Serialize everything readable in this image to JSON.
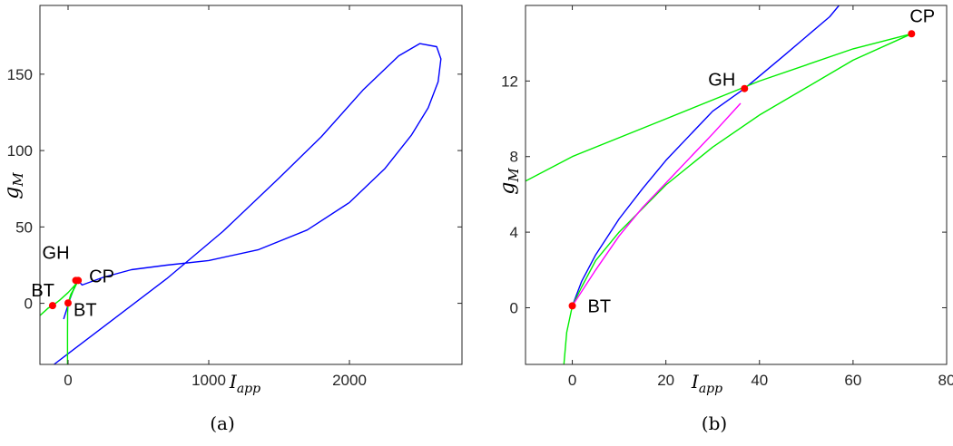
{
  "chart_data": [
    {
      "type": "line",
      "subcaption": "(a)",
      "xlabel": {
        "main": "I",
        "sub": "app"
      },
      "ylabel": {
        "main": "g",
        "sub": "M"
      },
      "xlim": [
        -200,
        2800
      ],
      "ylim": [
        -40,
        195
      ],
      "xticks": [
        {
          "v": 0,
          "t": "0"
        },
        {
          "v": 1000,
          "t": "1000"
        },
        {
          "v": 2000,
          "t": "2000"
        }
      ],
      "yticks": [
        {
          "v": 0,
          "t": "0"
        },
        {
          "v": 50,
          "t": "50"
        },
        {
          "v": 100,
          "t": "100"
        },
        {
          "v": 150,
          "t": "150"
        }
      ],
      "grid": false,
      "series": [
        {
          "color": "#0000ff",
          "points": [
            [
              -100,
              -40
            ],
            [
              0,
              -33
            ],
            [
              300,
              -12
            ],
            [
              700,
              16
            ],
            [
              1100,
              47
            ],
            [
              1500,
              82
            ],
            [
              1800,
              109
            ],
            [
              2100,
              140
            ],
            [
              2350,
              162
            ],
            [
              2500,
              170
            ],
            [
              2620,
              168
            ],
            [
              2650,
              160
            ],
            [
              2630,
              145
            ],
            [
              2560,
              128
            ],
            [
              2440,
              110
            ],
            [
              2250,
              88
            ],
            [
              2000,
              66
            ],
            [
              1700,
              48
            ],
            [
              1350,
              35
            ],
            [
              1000,
              28
            ],
            [
              700,
              25
            ],
            [
              450,
              22
            ],
            [
              250,
              17
            ],
            [
              100,
              12
            ],
            [
              70,
              15
            ],
            [
              50,
              12
            ],
            [
              10,
              2
            ],
            [
              -30,
              -10
            ]
          ]
        },
        {
          "color": "#00ee00",
          "points": [
            [
              -200,
              -8
            ],
            [
              -140,
              -3
            ],
            [
              -110,
              -1.5
            ],
            [
              -60,
              2
            ],
            [
              0,
              7
            ],
            [
              50,
              12
            ],
            [
              72,
              15
            ]
          ]
        },
        {
          "color": "#00ee00",
          "points": [
            [
              72,
              15
            ],
            [
              50,
              11
            ],
            [
              25,
              6
            ],
            [
              8,
              2
            ],
            [
              0,
              0
            ],
            [
              -3,
              -6
            ],
            [
              -4,
              -20
            ],
            [
              -4,
              -40
            ]
          ]
        },
        {
          "color": "#00ee00",
          "points": [
            [
              0,
              0
            ],
            [
              20,
              6
            ],
            [
              45,
              10
            ],
            [
              72,
              15
            ]
          ]
        }
      ],
      "points": [
        {
          "label": "GH",
          "x": 55,
          "y": 15,
          "color": "#ff0000"
        },
        {
          "label": "CP",
          "x": 72,
          "y": 15,
          "color": "#ff0000"
        },
        {
          "label": "BT",
          "x": -110,
          "y": -1.5,
          "color": "#ff0000"
        },
        {
          "label": "BT",
          "x": 0,
          "y": 0.2,
          "color": "#ff0000"
        }
      ]
    },
    {
      "type": "line",
      "subcaption": "(b)",
      "xlabel": {
        "main": "I",
        "sub": "app"
      },
      "ylabel": {
        "main": "g",
        "sub": "M"
      },
      "xlim": [
        -10,
        80
      ],
      "ylim": [
        -3,
        16
      ],
      "xticks": [
        {
          "v": 0,
          "t": "0"
        },
        {
          "v": 20,
          "t": "20"
        },
        {
          "v": 40,
          "t": "40"
        },
        {
          "v": 60,
          "t": "60"
        },
        {
          "v": 80,
          "t": "80"
        }
      ],
      "yticks": [
        {
          "v": 0,
          "t": "0"
        },
        {
          "v": 4,
          "t": "4"
        },
        {
          "v": 8,
          "t": "8"
        },
        {
          "v": 12,
          "t": "12"
        }
      ],
      "grid": false,
      "series": [
        {
          "color": "#0000ff",
          "points": [
            [
              0,
              0.1
            ],
            [
              2,
              1.4
            ],
            [
              5,
              2.8
            ],
            [
              10,
              4.7
            ],
            [
              15,
              6.3
            ],
            [
              20,
              7.8
            ],
            [
              25,
              9.1
            ],
            [
              30,
              10.4
            ],
            [
              36.8,
              11.6
            ],
            [
              45,
              13.3
            ],
            [
              55,
              15.4
            ],
            [
              57,
              16
            ]
          ]
        },
        {
          "color": "#00ee00",
          "points": [
            [
              -10,
              6.7
            ],
            [
              0,
              8.0
            ],
            [
              20,
              10.0
            ],
            [
              40,
              12.0
            ],
            [
              60,
              13.7
            ],
            [
              72.5,
              14.5
            ]
          ]
        },
        {
          "color": "#00ee00",
          "points": [
            [
              72.5,
              14.5
            ],
            [
              60,
              13.1
            ],
            [
              40,
              10.2
            ],
            [
              30,
              8.5
            ],
            [
              20,
              6.5
            ],
            [
              10,
              4.0
            ],
            [
              5,
              2.5
            ],
            [
              2,
              1.1
            ],
            [
              0,
              0.1
            ],
            [
              -1.2,
              -1.3
            ],
            [
              -1.8,
              -3
            ]
          ]
        },
        {
          "color": "#ff00ff",
          "points": [
            [
              0,
              0.1
            ],
            [
              5,
              2.0
            ],
            [
              10,
              3.8
            ],
            [
              15,
              5.3
            ],
            [
              20,
              6.6
            ],
            [
              25,
              7.9
            ],
            [
              30,
              9.2
            ],
            [
              35.9,
              10.8
            ]
          ]
        }
      ],
      "points": [
        {
          "label": "GH",
          "x": 36.8,
          "y": 11.6,
          "color": "#ff0000"
        },
        {
          "label": "CP",
          "x": 72.5,
          "y": 14.5,
          "color": "#ff0000"
        },
        {
          "label": "BT",
          "x": 0,
          "y": 0.1,
          "color": "#ff0000"
        }
      ]
    }
  ]
}
